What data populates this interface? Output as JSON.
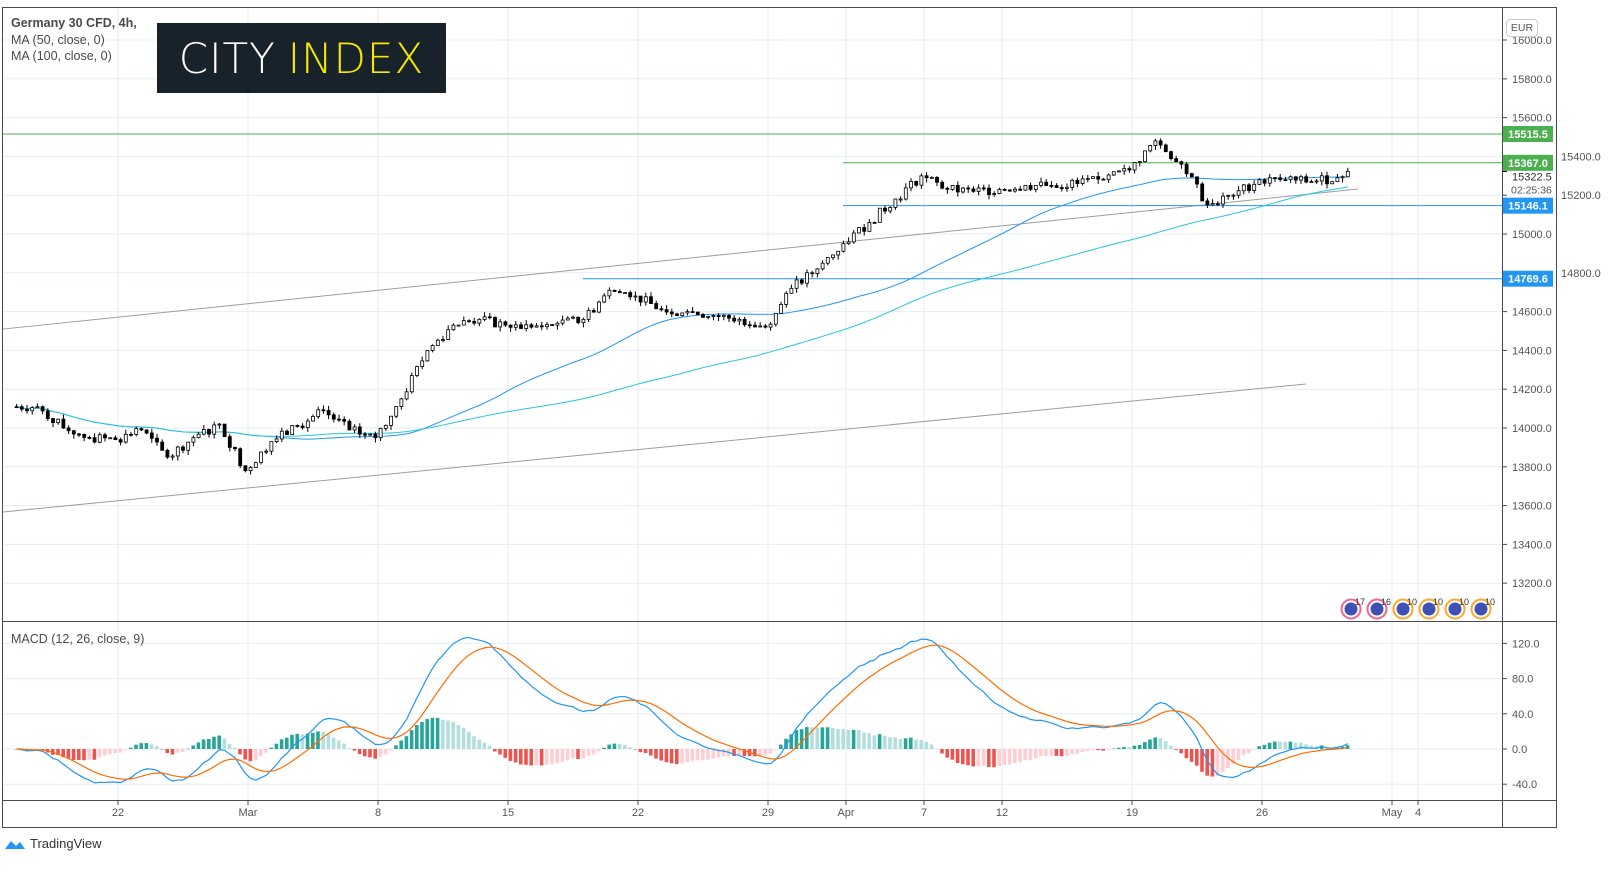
{
  "header": {
    "title": "Germany 30 CFD, 4h,",
    "ma1": "MA (50, close, 0)",
    "ma2": "MA (100, close, 0)",
    "currency": "EUR"
  },
  "logo": {
    "part1": "CITY",
    "part2": "INDEX"
  },
  "macd_label": "MACD (12, 26, close, 9)",
  "footer": {
    "brand": "TradingView"
  },
  "colors": {
    "up": "#ffffff",
    "down": "#000000",
    "ma50": "#2196f3",
    "ma100": "#26c6da",
    "macd": "#2196f3",
    "signal": "#ff6d00",
    "hist_up_strong": "#26a69a",
    "hist_up_weak": "#b2dfdb",
    "hist_down_strong": "#ef5350",
    "hist_down_weak": "#ffcdd2",
    "green_level": "#4caf50",
    "blue_level": "#2196f3",
    "trend": "#9e9e9e"
  },
  "chart_data": {
    "type": "candlestick",
    "price_axis": {
      "ticks": [
        16000,
        15800,
        15600,
        15400,
        15200,
        15000,
        14800,
        14600,
        14400,
        14200,
        14000,
        13800,
        13600,
        13400,
        13200
      ],
      "range": [
        13050,
        16165
      ]
    },
    "macd_axis": {
      "ticks": [
        120,
        80,
        40,
        0,
        -40
      ],
      "range": [
        -52,
        135
      ]
    },
    "x_ticks": [
      {
        "label": "22",
        "date": "2021-02-22"
      },
      {
        "label": "Mar",
        "date": "2021-03-01"
      },
      {
        "label": "8",
        "date": "2021-03-08"
      },
      {
        "label": "15",
        "date": "2021-03-15"
      },
      {
        "label": "22",
        "date": "2021-03-22"
      },
      {
        "label": "29",
        "date": "2021-03-29"
      },
      {
        "label": "Apr",
        "date": "2021-04-01"
      },
      {
        "label": "7",
        "date": "2021-04-07"
      },
      {
        "label": "12",
        "date": "2021-04-12"
      },
      {
        "label": "19",
        "date": "2021-04-19"
      },
      {
        "label": "26",
        "date": "2021-04-26"
      },
      {
        "label": "May",
        "date": "2021-05-03"
      },
      {
        "label": "4",
        "date": "2021-05-04"
      }
    ],
    "daily_closes": [
      [
        "2021-02-16",
        14110
      ],
      [
        "2021-02-17",
        14000
      ],
      [
        "2021-02-18",
        13950
      ],
      [
        "2021-02-19",
        13940
      ],
      [
        "2021-02-22",
        13990
      ],
      [
        "2021-02-23",
        13850
      ],
      [
        "2021-02-24",
        13950
      ],
      [
        "2021-02-25",
        14020
      ],
      [
        "2021-02-26",
        13780
      ],
      [
        "2021-03-01",
        13930
      ],
      [
        "2021-03-02",
        14010
      ],
      [
        "2021-03-03",
        14090
      ],
      [
        "2021-03-04",
        13990
      ],
      [
        "2021-03-05",
        13950
      ],
      [
        "2021-03-08",
        14150
      ],
      [
        "2021-03-09",
        14400
      ],
      [
        "2021-03-10",
        14530
      ],
      [
        "2021-03-11",
        14560
      ],
      [
        "2021-03-12",
        14530
      ],
      [
        "2021-03-15",
        14520
      ],
      [
        "2021-03-16",
        14540
      ],
      [
        "2021-03-17",
        14560
      ],
      [
        "2021-03-18",
        14710
      ],
      [
        "2021-03-19",
        14680
      ],
      [
        "2021-03-22",
        14610
      ],
      [
        "2021-03-23",
        14600
      ],
      [
        "2021-03-24",
        14580
      ],
      [
        "2021-03-25",
        14560
      ],
      [
        "2021-03-26",
        14520
      ],
      [
        "2021-03-29",
        14720
      ],
      [
        "2021-03-30",
        14820
      ],
      [
        "2021-03-31",
        14950
      ],
      [
        "2021-04-01",
        15060
      ],
      [
        "2021-04-02",
        15180
      ],
      [
        "2021-04-06",
        15300
      ],
      [
        "2021-04-07",
        15230
      ],
      [
        "2021-04-08",
        15220
      ],
      [
        "2021-04-09",
        15230
      ],
      [
        "2021-04-12",
        15250
      ],
      [
        "2021-04-13",
        15250
      ],
      [
        "2021-04-14",
        15260
      ],
      [
        "2021-04-15",
        15280
      ],
      [
        "2021-04-16",
        15330
      ],
      [
        "2021-04-19",
        15480
      ],
      [
        "2021-04-20",
        15360
      ],
      [
        "2021-04-21",
        15150
      ],
      [
        "2021-04-22",
        15200
      ],
      [
        "2021-04-23",
        15280
      ],
      [
        "2021-04-26",
        15280
      ],
      [
        "2021-04-27",
        15270
      ],
      [
        "2021-04-28",
        15290
      ],
      [
        "2021-04-29",
        15322.5
      ]
    ],
    "levels": [
      {
        "value": 15515.5,
        "color": "green",
        "from": "full"
      },
      {
        "value": 15367.0,
        "color": "green",
        "from": "2021-04-01"
      },
      {
        "value": 15146.1,
        "color": "blue",
        "from": "2021-04-01"
      },
      {
        "value": 14769.6,
        "color": "blue",
        "from": "2021-03-18"
      }
    ],
    "trendlines": [
      {
        "from": [
          "2021-02-16",
          14510
        ],
        "to": [
          "2021-04-29",
          15232
        ]
      },
      {
        "from": [
          "2021-02-16",
          13567
        ],
        "to": [
          "2021-04-27",
          14227
        ]
      }
    ],
    "last_price": "15322.5",
    "countdown": "02:25:36",
    "level_labels": [
      "15515.5",
      "15367.0",
      "15146.1",
      "14769.6"
    ],
    "events": [
      "17",
      "16",
      "10",
      "10",
      "10",
      "10"
    ]
  }
}
